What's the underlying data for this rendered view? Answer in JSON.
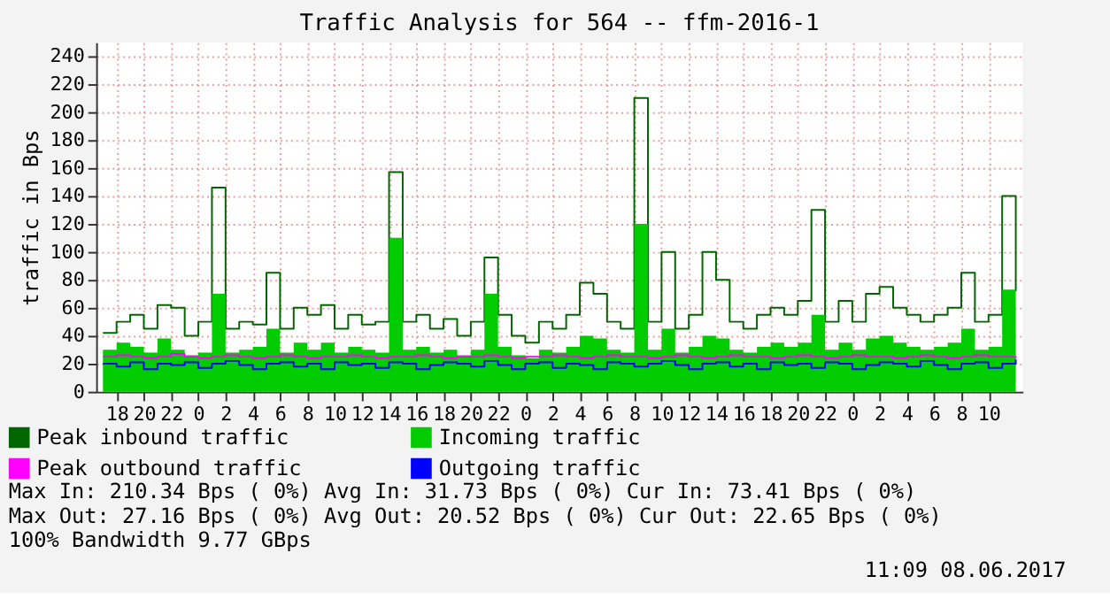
{
  "chart_data": {
    "type": "step",
    "title": "Traffic Analysis for 564 -- ffm-2016-1",
    "ylabel": "traffic in Bps",
    "x": [
      "2017-06-05T17:00",
      "2017-06-05T18:00",
      "2017-06-05T19:00",
      "2017-06-05T20:00",
      "2017-06-05T21:00",
      "2017-06-05T22:00",
      "2017-06-05T23:00",
      "2017-06-06T00:00",
      "2017-06-06T01:00",
      "2017-06-06T02:00",
      "2017-06-06T03:00",
      "2017-06-06T04:00",
      "2017-06-06T05:00",
      "2017-06-06T06:00",
      "2017-06-06T07:00",
      "2017-06-06T08:00",
      "2017-06-06T09:00",
      "2017-06-06T10:00",
      "2017-06-06T11:00",
      "2017-06-06T12:00",
      "2017-06-06T13:00",
      "2017-06-06T14:00",
      "2017-06-06T15:00",
      "2017-06-06T16:00",
      "2017-06-06T17:00",
      "2017-06-06T18:00",
      "2017-06-06T19:00",
      "2017-06-06T20:00",
      "2017-06-06T21:00",
      "2017-06-06T22:00",
      "2017-06-06T23:00",
      "2017-06-07T00:00",
      "2017-06-07T01:00",
      "2017-06-07T02:00",
      "2017-06-07T03:00",
      "2017-06-07T04:00",
      "2017-06-07T05:00",
      "2017-06-07T06:00",
      "2017-06-07T07:00",
      "2017-06-07T08:00",
      "2017-06-07T09:00",
      "2017-06-07T10:00",
      "2017-06-07T11:00",
      "2017-06-07T12:00",
      "2017-06-07T13:00",
      "2017-06-07T14:00",
      "2017-06-07T15:00",
      "2017-06-07T16:00",
      "2017-06-07T17:00",
      "2017-06-07T18:00",
      "2017-06-07T19:00",
      "2017-06-07T20:00",
      "2017-06-07T21:00",
      "2017-06-07T22:00",
      "2017-06-07T23:00",
      "2017-06-08T00:00",
      "2017-06-08T01:00",
      "2017-06-08T02:00",
      "2017-06-08T03:00",
      "2017-06-08T04:00",
      "2017-06-08T05:00",
      "2017-06-08T06:00",
      "2017-06-08T07:00",
      "2017-06-08T08:00",
      "2017-06-08T09:00",
      "2017-06-08T10:00",
      "2017-06-08T11:00",
      "2017-06-08T12:00"
    ],
    "series": [
      {
        "name": "Peak inbound traffic",
        "color": "#006600",
        "values": [
          42,
          50,
          55,
          45,
          62,
          60,
          40,
          50,
          146,
          45,
          50,
          48,
          85,
          45,
          60,
          55,
          62,
          45,
          55,
          48,
          50,
          157,
          50,
          55,
          45,
          52,
          40,
          50,
          96,
          55,
          40,
          35,
          50,
          45,
          55,
          78,
          70,
          50,
          45,
          210,
          50,
          100,
          45,
          55,
          100,
          80,
          50,
          45,
          55,
          60,
          55,
          65,
          130,
          50,
          65,
          50,
          70,
          75,
          60,
          55,
          50,
          55,
          60,
          85,
          50,
          55,
          140,
          72
        ]
      },
      {
        "name": "Incoming traffic",
        "type": "area",
        "color": "#00cc00",
        "values": [
          30,
          35,
          32,
          28,
          38,
          30,
          26,
          28,
          70,
          28,
          30,
          32,
          45,
          28,
          35,
          30,
          35,
          28,
          32,
          30,
          28,
          110,
          30,
          32,
          28,
          30,
          26,
          30,
          70,
          32,
          26,
          24,
          30,
          28,
          32,
          40,
          38,
          30,
          28,
          120,
          30,
          45,
          28,
          32,
          40,
          38,
          30,
          28,
          32,
          35,
          32,
          35,
          55,
          30,
          35,
          30,
          38,
          40,
          35,
          32,
          30,
          32,
          35,
          45,
          30,
          32,
          73,
          40
        ]
      },
      {
        "name": "Peak outbound traffic",
        "color": "#ff00ff",
        "values": [
          25,
          26,
          25,
          24,
          25,
          27,
          25,
          24,
          25,
          26,
          25,
          24,
          25,
          26,
          25,
          24,
          25,
          25,
          26,
          25,
          24,
          25,
          25,
          26,
          25,
          24,
          25,
          25,
          26,
          25,
          24,
          25,
          25,
          26,
          25,
          24,
          25,
          26,
          25,
          25,
          24,
          25,
          26,
          25,
          24,
          25,
          26,
          25,
          25,
          24,
          25,
          26,
          25,
          24,
          25,
          26,
          25,
          25,
          24,
          25,
          26,
          25,
          24,
          25,
          26,
          25,
          25,
          24
        ]
      },
      {
        "name": "Outgoing traffic",
        "color": "#0000ff",
        "values": [
          20,
          18,
          21,
          16,
          20,
          19,
          21,
          17,
          20,
          22,
          19,
          16,
          20,
          21,
          18,
          20,
          16,
          21,
          19,
          20,
          17,
          21,
          20,
          16,
          19,
          21,
          20,
          18,
          22,
          19,
          16,
          20,
          21,
          17,
          20,
          19,
          16,
          21,
          20,
          18,
          20,
          22,
          19,
          16,
          20,
          21,
          18,
          20,
          16,
          21,
          19,
          20,
          17,
          21,
          20,
          16,
          19,
          21,
          20,
          18,
          22,
          19,
          16,
          20,
          21,
          17,
          20,
          23
        ]
      }
    ],
    "xlim": [
      "2017-06-05T16:30",
      "2017-06-08T12:30"
    ],
    "ylim": [
      0,
      250
    ],
    "xticks": [
      {
        "value": "2017-06-05T18:00",
        "label": "18"
      },
      {
        "value": "2017-06-05T20:00",
        "label": "20"
      },
      {
        "value": "2017-06-05T22:00",
        "label": "22"
      },
      {
        "value": "2017-06-06T00:00",
        "label": "0"
      },
      {
        "value": "2017-06-06T02:00",
        "label": "2"
      },
      {
        "value": "2017-06-06T04:00",
        "label": "4"
      },
      {
        "value": "2017-06-06T06:00",
        "label": "6"
      },
      {
        "value": "2017-06-06T08:00",
        "label": "8"
      },
      {
        "value": "2017-06-06T10:00",
        "label": "10"
      },
      {
        "value": "2017-06-06T12:00",
        "label": "12"
      },
      {
        "value": "2017-06-06T14:00",
        "label": "14"
      },
      {
        "value": "2017-06-06T16:00",
        "label": "16"
      },
      {
        "value": "2017-06-06T18:00",
        "label": "18"
      },
      {
        "value": "2017-06-06T20:00",
        "label": "20"
      },
      {
        "value": "2017-06-06T22:00",
        "label": "22"
      },
      {
        "value": "2017-06-07T00:00",
        "label": "0"
      },
      {
        "value": "2017-06-07T02:00",
        "label": "2"
      },
      {
        "value": "2017-06-07T04:00",
        "label": "4"
      },
      {
        "value": "2017-06-07T06:00",
        "label": "6"
      },
      {
        "value": "2017-06-07T08:00",
        "label": "8"
      },
      {
        "value": "2017-06-07T10:00",
        "label": "10"
      },
      {
        "value": "2017-06-07T12:00",
        "label": "12"
      },
      {
        "value": "2017-06-07T14:00",
        "label": "14"
      },
      {
        "value": "2017-06-07T16:00",
        "label": "16"
      },
      {
        "value": "2017-06-07T18:00",
        "label": "18"
      },
      {
        "value": "2017-06-07T20:00",
        "label": "20"
      },
      {
        "value": "2017-06-07T22:00",
        "label": "22"
      },
      {
        "value": "2017-06-08T00:00",
        "label": "0"
      },
      {
        "value": "2017-06-08T02:00",
        "label": "2"
      },
      {
        "value": "2017-06-08T04:00",
        "label": "4"
      },
      {
        "value": "2017-06-08T06:00",
        "label": "6"
      },
      {
        "value": "2017-06-08T08:00",
        "label": "8"
      },
      {
        "value": "2017-06-08T10:00",
        "label": "10"
      }
    ],
    "yticks": [
      0,
      20,
      40,
      60,
      80,
      100,
      120,
      140,
      160,
      180,
      200,
      220,
      240
    ],
    "grid": true,
    "legend": "bottom",
    "annotations": [
      "Max In: 210.34  Bps ( 0%)  Avg In:  31.73  Bps ( 0%)  Cur In:  73.41  Bps ( 0%)",
      "Max Out: 27.16  Bps ( 0%)  Avg Out: 20.52  Bps ( 0%)  Cur Out: 22.65  Bps ( 0%)",
      "100% Bandwidth 9.77 GBps",
      "11:09 08.06.2017"
    ]
  }
}
